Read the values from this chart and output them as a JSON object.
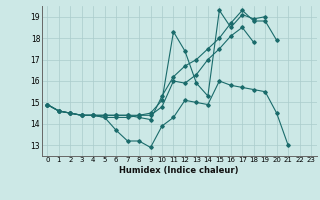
{
  "xlabel": "Humidex (Indice chaleur)",
  "bg_color": "#cce8e6",
  "grid_color": "#aacccc",
  "line_color": "#1a6b6b",
  "xlim": [
    -0.5,
    23.5
  ],
  "ylim": [
    12.5,
    19.5
  ],
  "xticks": [
    0,
    1,
    2,
    3,
    4,
    5,
    6,
    7,
    8,
    9,
    10,
    11,
    12,
    13,
    14,
    15,
    16,
    17,
    18,
    19,
    20,
    21,
    22,
    23
  ],
  "yticks": [
    13,
    14,
    15,
    16,
    17,
    18,
    19
  ],
  "series": [
    [
      14.9,
      14.6,
      14.5,
      14.4,
      14.4,
      14.3,
      13.7,
      13.2,
      13.2,
      12.9,
      13.9,
      14.3,
      15.1,
      15.0,
      14.9,
      16.0,
      15.8,
      15.7,
      15.6,
      15.5,
      14.5,
      13.0,
      null,
      null
    ],
    [
      14.9,
      14.6,
      14.5,
      14.4,
      14.4,
      14.3,
      14.3,
      14.3,
      14.4,
      14.4,
      14.8,
      16.0,
      15.9,
      16.3,
      17.0,
      17.5,
      18.1,
      18.5,
      17.8,
      null,
      null,
      null,
      null,
      null
    ],
    [
      14.9,
      14.6,
      14.5,
      14.4,
      14.4,
      14.4,
      14.4,
      14.4,
      14.4,
      14.5,
      15.1,
      18.3,
      17.4,
      15.9,
      15.3,
      19.3,
      18.5,
      19.1,
      18.9,
      19.0,
      null,
      null,
      null,
      null
    ],
    [
      14.9,
      14.6,
      14.5,
      14.4,
      14.4,
      14.4,
      14.4,
      14.4,
      14.3,
      14.2,
      15.3,
      16.2,
      16.7,
      17.0,
      17.5,
      18.0,
      18.7,
      19.3,
      18.8,
      18.8,
      17.9,
      null,
      null,
      null
    ]
  ]
}
